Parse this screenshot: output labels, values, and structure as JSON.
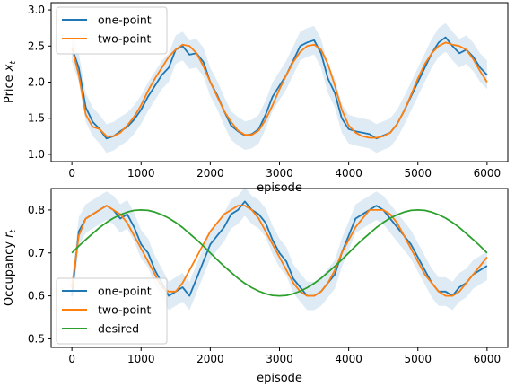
{
  "chart_data": [
    {
      "type": "line",
      "xlabel": "episode",
      "ylabel": "Price x_t",
      "ylabel_text": "Price ",
      "ylabel_symbol": "x",
      "ylabel_sub": "t",
      "xlim": [
        -300,
        6300
      ],
      "ylim": [
        0.9,
        3.1
      ],
      "xticks": [
        "0",
        "1000",
        "2000",
        "3000",
        "4000",
        "5000",
        "6000"
      ],
      "yticks": [
        "1.0",
        "1.5",
        "2.0",
        "2.5",
        "3.0"
      ],
      "legend_position": "top-left",
      "series": [
        {
          "name": "one-point",
          "color": "#1f77b4",
          "band": true,
          "x": [
            0,
            100,
            200,
            300,
            400,
            500,
            600,
            700,
            800,
            900,
            1000,
            1100,
            1200,
            1300,
            1400,
            1500,
            1600,
            1700,
            1800,
            1900,
            2000,
            2100,
            2200,
            2300,
            2400,
            2500,
            2600,
            2700,
            2800,
            2900,
            3000,
            3100,
            3200,
            3300,
            3400,
            3500,
            3600,
            3700,
            3800,
            3900,
            4000,
            4100,
            4200,
            4300,
            4400,
            4500,
            4600,
            4700,
            4800,
            4900,
            5000,
            5100,
            5200,
            5300,
            5400,
            5500,
            5600,
            5700,
            5800,
            5900,
            6000
          ],
          "values": [
            2.48,
            2.2,
            1.65,
            1.45,
            1.35,
            1.22,
            1.25,
            1.32,
            1.38,
            1.48,
            1.62,
            1.8,
            1.95,
            2.1,
            2.2,
            2.45,
            2.5,
            2.38,
            2.4,
            2.28,
            2.0,
            1.82,
            1.6,
            1.4,
            1.32,
            1.26,
            1.28,
            1.35,
            1.55,
            1.8,
            1.95,
            2.1,
            2.3,
            2.5,
            2.55,
            2.58,
            2.4,
            2.05,
            1.85,
            1.5,
            1.35,
            1.32,
            1.3,
            1.28,
            1.22,
            1.26,
            1.3,
            1.42,
            1.6,
            1.8,
            2.0,
            2.2,
            2.4,
            2.55,
            2.62,
            2.5,
            2.4,
            2.45,
            2.35,
            2.2,
            2.1
          ]
        },
        {
          "name": "two-point",
          "color": "#ff7f0e",
          "band": false,
          "x": [
            0,
            100,
            200,
            300,
            400,
            500,
            600,
            700,
            800,
            900,
            1000,
            1100,
            1200,
            1300,
            1400,
            1500,
            1600,
            1700,
            1800,
            1900,
            2000,
            2100,
            2200,
            2300,
            2400,
            2500,
            2600,
            2700,
            2800,
            2900,
            3000,
            3100,
            3200,
            3300,
            3400,
            3500,
            3600,
            3700,
            3800,
            3900,
            4000,
            4100,
            4200,
            4300,
            4400,
            4500,
            4600,
            4700,
            4800,
            4900,
            5000,
            5100,
            5200,
            5300,
            5400,
            5500,
            5600,
            5700,
            5800,
            5900,
            6000
          ],
          "values": [
            2.48,
            2.1,
            1.55,
            1.38,
            1.35,
            1.25,
            1.25,
            1.3,
            1.4,
            1.52,
            1.68,
            1.88,
            2.05,
            2.2,
            2.35,
            2.45,
            2.52,
            2.5,
            2.4,
            2.22,
            2.0,
            1.8,
            1.6,
            1.45,
            1.33,
            1.27,
            1.27,
            1.33,
            1.48,
            1.68,
            1.9,
            2.1,
            2.28,
            2.42,
            2.5,
            2.52,
            2.45,
            2.25,
            1.95,
            1.62,
            1.4,
            1.3,
            1.25,
            1.23,
            1.23,
            1.25,
            1.3,
            1.42,
            1.6,
            1.82,
            2.05,
            2.25,
            2.4,
            2.5,
            2.55,
            2.52,
            2.5,
            2.45,
            2.32,
            2.15,
            2.0
          ]
        }
      ]
    },
    {
      "type": "line",
      "xlabel": "episode",
      "ylabel": "Occupancy r_t",
      "ylabel_text": "Occupancy ",
      "ylabel_symbol": "r",
      "ylabel_sub": "t",
      "xlim": [
        -300,
        6300
      ],
      "ylim": [
        0.48,
        0.85
      ],
      "xticks": [
        "0",
        "1000",
        "2000",
        "3000",
        "4000",
        "5000",
        "6000"
      ],
      "yticks": [
        "0.5",
        "0.6",
        "0.7",
        "0.8"
      ],
      "legend_position": "bottom-left",
      "series": [
        {
          "name": "one-point",
          "color": "#1f77b4",
          "band": true,
          "x": [
            0,
            100,
            200,
            300,
            400,
            500,
            600,
            700,
            800,
            900,
            1000,
            1100,
            1200,
            1300,
            1400,
            1500,
            1600,
            1700,
            1800,
            1900,
            2000,
            2100,
            2200,
            2300,
            2400,
            2500,
            2600,
            2700,
            2800,
            2900,
            3000,
            3100,
            3200,
            3300,
            3400,
            3500,
            3600,
            3700,
            3800,
            3900,
            4000,
            4100,
            4200,
            4300,
            4400,
            4500,
            4600,
            4700,
            4800,
            4900,
            5000,
            5100,
            5200,
            5300,
            5400,
            5500,
            5600,
            5700,
            5800,
            5900,
            6000
          ],
          "values": [
            0.6,
            0.75,
            0.78,
            0.79,
            0.8,
            0.81,
            0.8,
            0.78,
            0.79,
            0.76,
            0.72,
            0.7,
            0.66,
            0.63,
            0.6,
            0.61,
            0.62,
            0.6,
            0.64,
            0.68,
            0.72,
            0.74,
            0.76,
            0.79,
            0.8,
            0.82,
            0.8,
            0.79,
            0.77,
            0.73,
            0.7,
            0.68,
            0.64,
            0.62,
            0.6,
            0.6,
            0.61,
            0.63,
            0.65,
            0.7,
            0.74,
            0.78,
            0.79,
            0.8,
            0.81,
            0.8,
            0.78,
            0.76,
            0.74,
            0.72,
            0.69,
            0.66,
            0.63,
            0.61,
            0.61,
            0.6,
            0.62,
            0.63,
            0.65,
            0.66,
            0.67
          ]
        },
        {
          "name": "two-point",
          "color": "#ff7f0e",
          "band": false,
          "x": [
            0,
            100,
            200,
            300,
            400,
            500,
            600,
            700,
            800,
            900,
            1000,
            1100,
            1200,
            1300,
            1400,
            1500,
            1600,
            1700,
            1800,
            1900,
            2000,
            2100,
            2200,
            2300,
            2400,
            2500,
            2600,
            2700,
            2800,
            2900,
            3000,
            3100,
            3200,
            3300,
            3400,
            3500,
            3600,
            3700,
            3800,
            3900,
            4000,
            4100,
            4200,
            4300,
            4400,
            4500,
            4600,
            4700,
            4800,
            4900,
            5000,
            5100,
            5200,
            5300,
            5400,
            5500,
            5600,
            5700,
            5800,
            5900,
            6000
          ],
          "values": [
            0.62,
            0.74,
            0.78,
            0.79,
            0.8,
            0.81,
            0.8,
            0.79,
            0.77,
            0.74,
            0.71,
            0.68,
            0.65,
            0.62,
            0.61,
            0.61,
            0.63,
            0.66,
            0.69,
            0.72,
            0.75,
            0.77,
            0.79,
            0.8,
            0.81,
            0.81,
            0.8,
            0.78,
            0.75,
            0.72,
            0.69,
            0.66,
            0.63,
            0.61,
            0.6,
            0.6,
            0.61,
            0.63,
            0.66,
            0.7,
            0.73,
            0.76,
            0.78,
            0.8,
            0.8,
            0.8,
            0.79,
            0.77,
            0.74,
            0.71,
            0.68,
            0.65,
            0.63,
            0.61,
            0.6,
            0.6,
            0.61,
            0.63,
            0.65,
            0.67,
            0.69
          ]
        },
        {
          "name": "desired",
          "color": "#2ca02c",
          "band": false,
          "function": "0.7 + 0.1*sin(2*pi*x/4000)",
          "x": [
            0,
            100,
            200,
            300,
            400,
            500,
            600,
            700,
            800,
            900,
            1000,
            1100,
            1200,
            1300,
            1400,
            1500,
            1600,
            1700,
            1800,
            1900,
            2000,
            2100,
            2200,
            2300,
            2400,
            2500,
            2600,
            2700,
            2800,
            2900,
            3000,
            3100,
            3200,
            3300,
            3400,
            3500,
            3600,
            3700,
            3800,
            3900,
            4000,
            4100,
            4200,
            4300,
            4400,
            4500,
            4600,
            4700,
            4800,
            4900,
            5000,
            5100,
            5200,
            5300,
            5400,
            5500,
            5600,
            5700,
            5800,
            5900,
            6000
          ],
          "values": [
            0.7,
            0.716,
            0.731,
            0.745,
            0.759,
            0.771,
            0.781,
            0.789,
            0.795,
            0.799,
            0.8,
            0.799,
            0.795,
            0.789,
            0.781,
            0.771,
            0.759,
            0.745,
            0.731,
            0.716,
            0.7,
            0.684,
            0.669,
            0.655,
            0.641,
            0.629,
            0.619,
            0.611,
            0.605,
            0.601,
            0.6,
            0.601,
            0.605,
            0.611,
            0.619,
            0.629,
            0.641,
            0.655,
            0.669,
            0.684,
            0.7,
            0.716,
            0.731,
            0.745,
            0.759,
            0.771,
            0.781,
            0.789,
            0.795,
            0.799,
            0.8,
            0.799,
            0.795,
            0.789,
            0.781,
            0.771,
            0.759,
            0.745,
            0.731,
            0.716,
            0.7
          ]
        }
      ]
    }
  ]
}
